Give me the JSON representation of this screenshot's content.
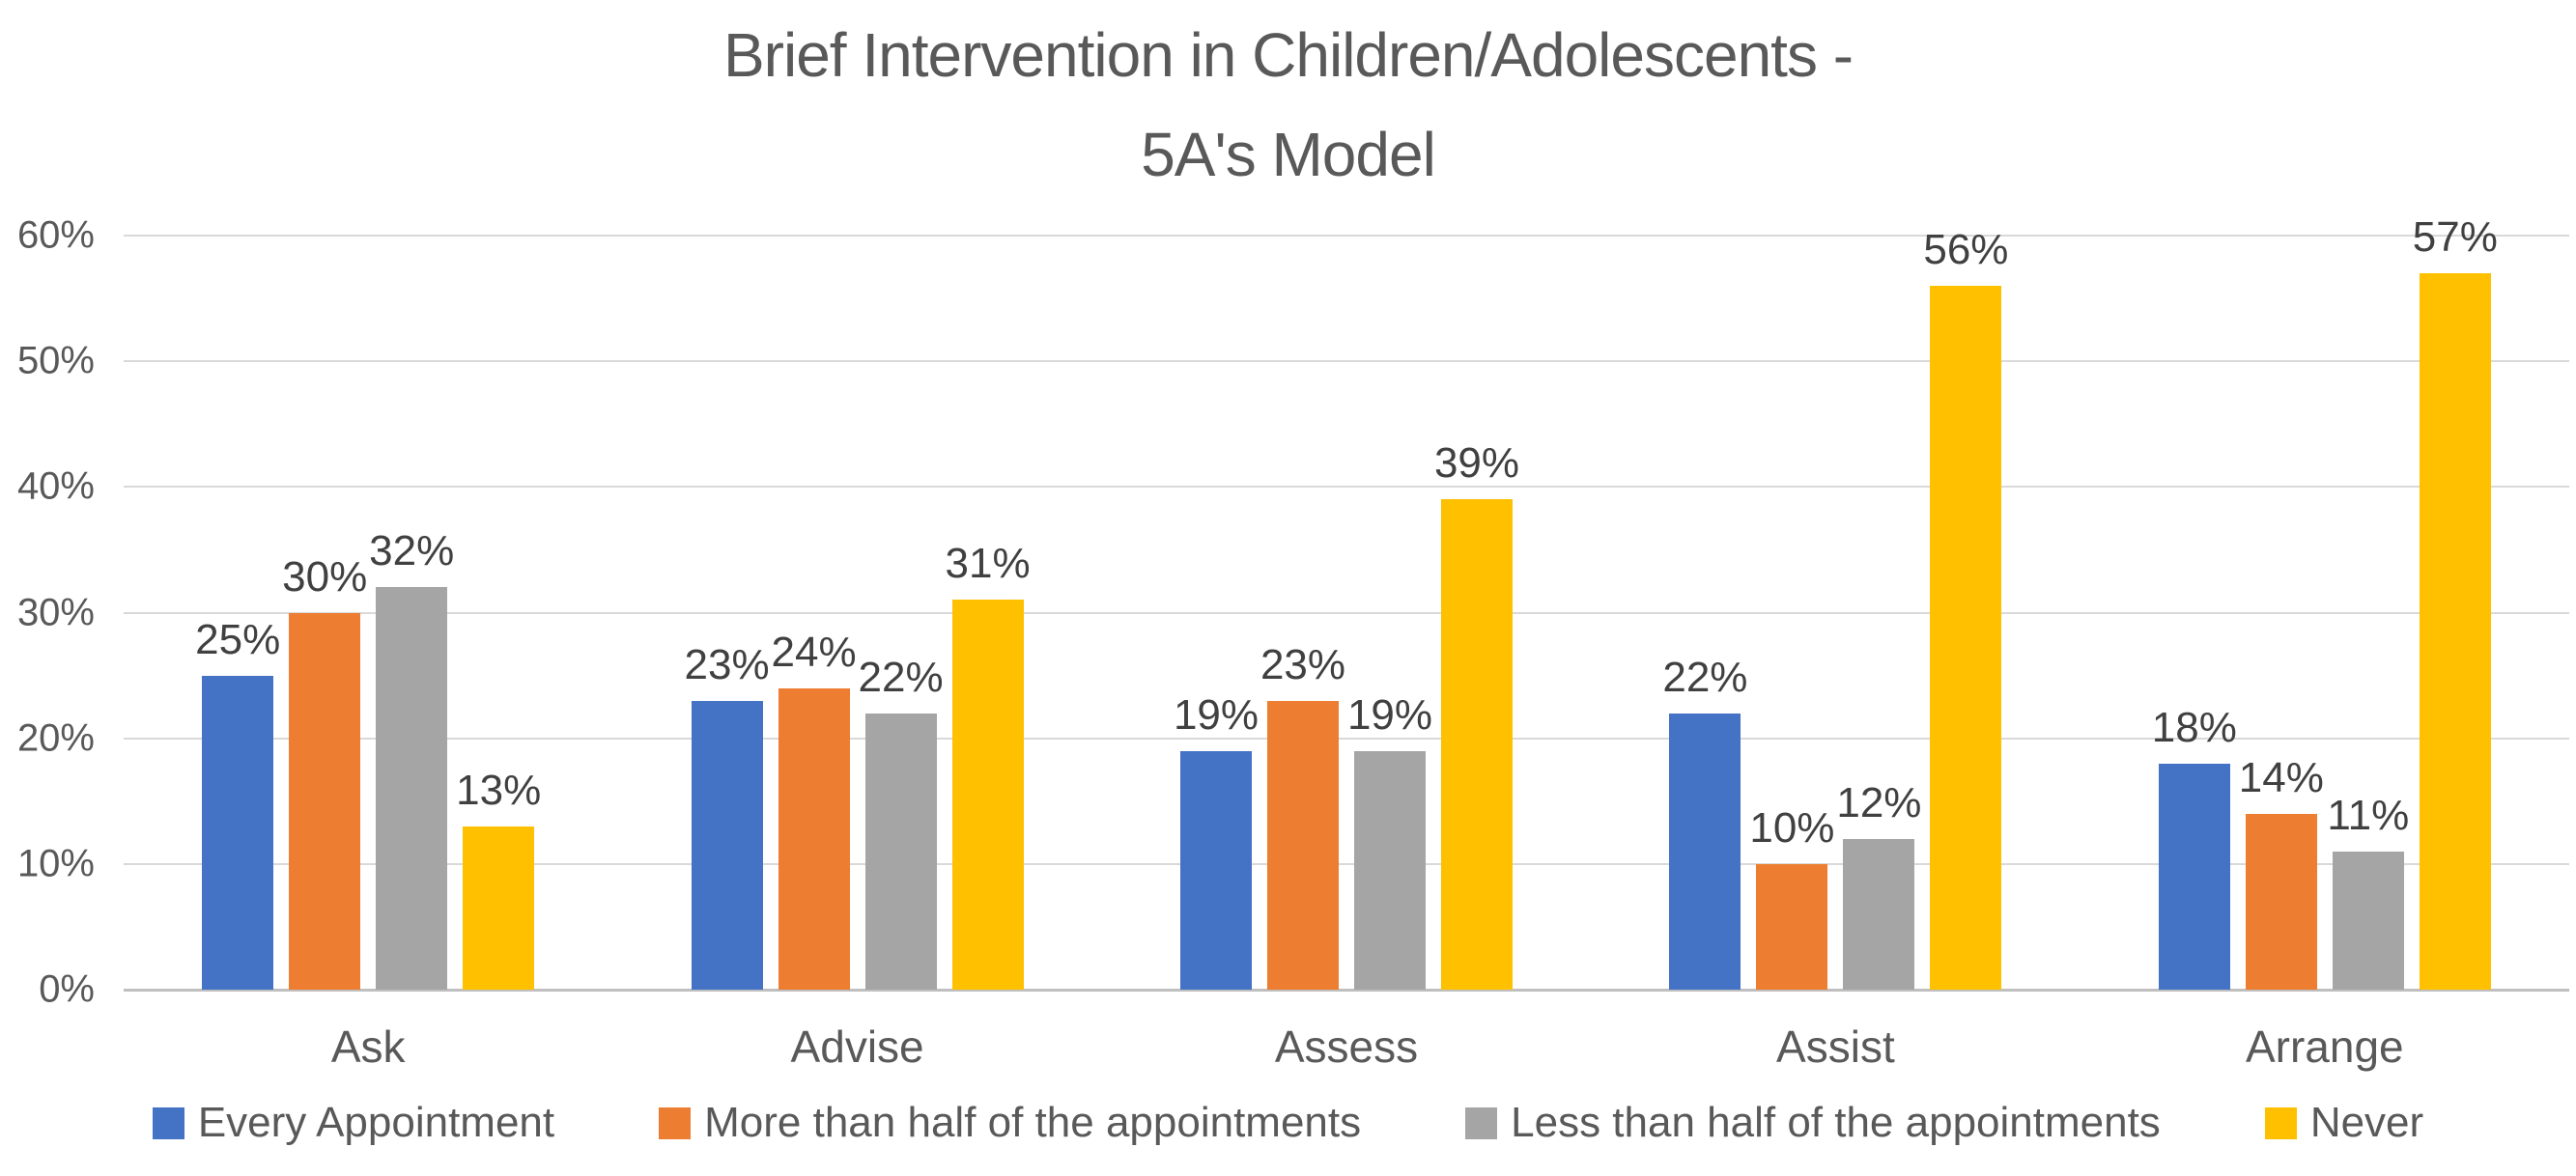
{
  "chart_data": {
    "type": "bar",
    "title": "Brief Intervention in Children/Adolescents - 5A's Model",
    "title_lines": [
      "Brief Intervention in Children/Adolescents -",
      "5A's Model"
    ],
    "categories": [
      "Ask",
      "Advise",
      "Assess",
      "Assist",
      "Arrange"
    ],
    "series": [
      {
        "name": "Every Appointment",
        "color": "#4472C4",
        "values": [
          25,
          23,
          19,
          22,
          18
        ]
      },
      {
        "name": "More than half of the appointments",
        "color": "#ED7D31",
        "values": [
          30,
          24,
          23,
          10,
          14
        ]
      },
      {
        "name": "Less than half of the appointments",
        "color": "#A5A5A5",
        "values": [
          32,
          22,
          19,
          12,
          11
        ]
      },
      {
        "name": "Never",
        "color": "#FFC000",
        "values": [
          13,
          31,
          39,
          56,
          57
        ]
      }
    ],
    "data_labels": [
      [
        "25%",
        "23%",
        "19%",
        "22%",
        "18%"
      ],
      [
        "30%",
        "24%",
        "23%",
        "10%",
        "14%"
      ],
      [
        "32%",
        "22%",
        "19%",
        "12%",
        "11%"
      ],
      [
        "13%",
        "31%",
        "39%",
        "56%",
        "57%"
      ]
    ],
    "xlabel": "",
    "ylabel": "",
    "ylim": [
      0,
      60
    ],
    "yticks": [
      0,
      10,
      20,
      30,
      40,
      50,
      60
    ],
    "ytick_labels": [
      "0%",
      "10%",
      "20%",
      "30%",
      "40%",
      "50%",
      "60%"
    ],
    "grid": true,
    "legend_position": "bottom",
    "palette": {
      "title_text": "#595959",
      "axis_text": "#595959",
      "data_label_text": "#404040",
      "gridline": "#D9D9D9",
      "axis_line": "#BFBFBF",
      "background": "#FFFFFF"
    }
  }
}
